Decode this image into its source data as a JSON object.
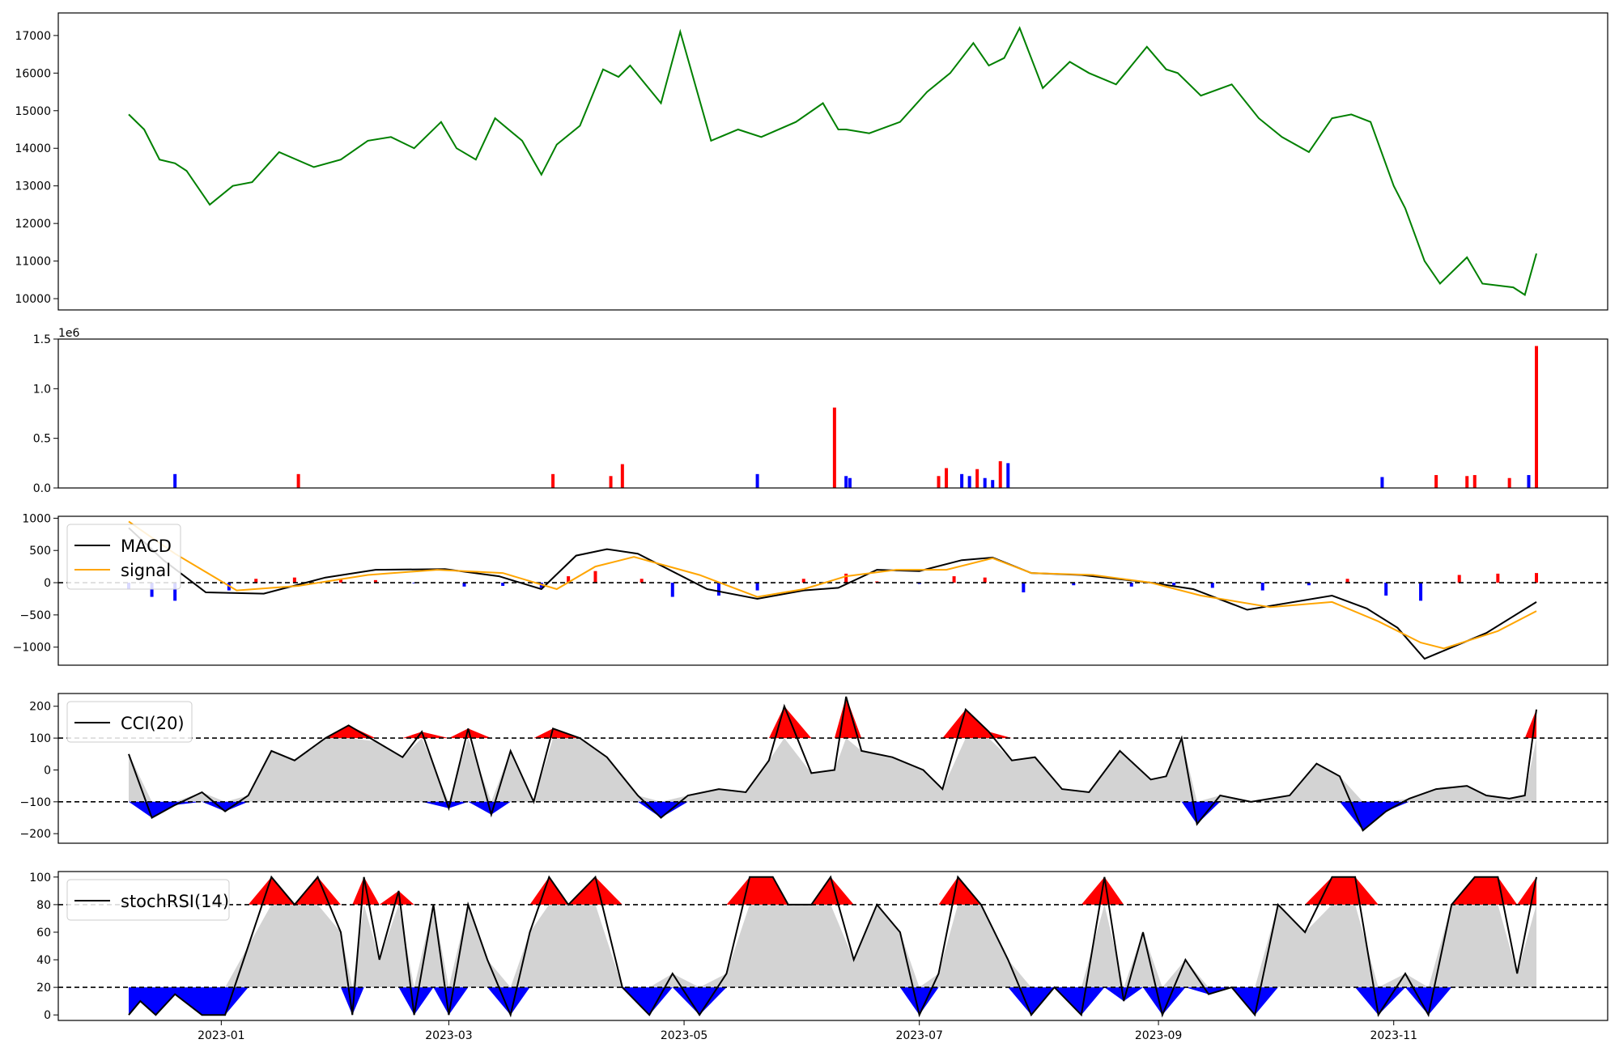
{
  "chart_data": [
    {
      "type": "line",
      "title": "",
      "xlabel": "",
      "ylabel": "",
      "ylim": [
        9700,
        17600
      ],
      "yticks": [
        "10000",
        "11000",
        "12000",
        "13000",
        "14000",
        "15000",
        "16000",
        "17000"
      ],
      "color": "#008000",
      "x_range": [
        "2022-12-08",
        "2023-12-08"
      ],
      "x": [
        "2022-12-08",
        "2022-12-12",
        "2022-12-16",
        "2022-12-20",
        "2022-12-23",
        "2022-12-29",
        "2023-01-04",
        "2023-01-09",
        "2023-01-16",
        "2023-01-25",
        "2023-02-01",
        "2023-02-08",
        "2023-02-14",
        "2023-02-20",
        "2023-02-27",
        "2023-03-03",
        "2023-03-08",
        "2023-03-13",
        "2023-03-20",
        "2023-03-25",
        "2023-03-29",
        "2023-04-04",
        "2023-04-10",
        "2023-04-14",
        "2023-04-17",
        "2023-04-25",
        "2023-04-30",
        "2023-05-08",
        "2023-05-15",
        "2023-05-21",
        "2023-05-30",
        "2023-06-06",
        "2023-06-10",
        "2023-06-12",
        "2023-06-18",
        "2023-06-26",
        "2023-07-03",
        "2023-07-09",
        "2023-07-15",
        "2023-07-19",
        "2023-07-23",
        "2023-07-27",
        "2023-08-02",
        "2023-08-09",
        "2023-08-14",
        "2023-08-21",
        "2023-08-29",
        "2023-09-03",
        "2023-09-06",
        "2023-09-12",
        "2023-09-20",
        "2023-09-27",
        "2023-10-03",
        "2023-10-10",
        "2023-10-16",
        "2023-10-21",
        "2023-10-26",
        "2023-11-01",
        "2023-11-04",
        "2023-11-09",
        "2023-11-13",
        "2023-11-20",
        "2023-11-24",
        "2023-12-02",
        "2023-12-05",
        "2023-12-08"
      ],
      "y": [
        14900,
        14500,
        13700,
        13600,
        13400,
        12500,
        13000,
        13100,
        13900,
        13500,
        13700,
        14200,
        14300,
        14000,
        14700,
        14000,
        13700,
        14800,
        14200,
        13300,
        14100,
        14600,
        16100,
        15900,
        16200,
        15200,
        17100,
        14200,
        14500,
        14300,
        14700,
        15200,
        14500,
        14500,
        14400,
        14700,
        15500,
        16000,
        16800,
        16200,
        16400,
        17200,
        15600,
        16300,
        16000,
        15700,
        16700,
        16100,
        16000,
        15400,
        15700,
        14800,
        14300,
        13900,
        14800,
        14900,
        14700,
        13000,
        12400,
        11000,
        10400,
        11100,
        10400,
        10300,
        10100,
        11200
      ]
    },
    {
      "type": "bar",
      "title": "",
      "xlabel": "",
      "ylabel": "",
      "offset_text": "1e6",
      "ylim": [
        0,
        1.5
      ],
      "yticks": [
        "0.0",
        "0.5",
        "1.0",
        "1.5"
      ],
      "colors": {
        "up": "#ff0000",
        "down": "#0000ff"
      },
      "x": [
        "2022-12-20",
        "2023-01-21",
        "2023-03-28",
        "2023-04-12",
        "2023-04-15",
        "2023-05-20",
        "2023-06-09",
        "2023-06-12",
        "2023-06-13",
        "2023-07-06",
        "2023-07-08",
        "2023-07-12",
        "2023-07-14",
        "2023-07-16",
        "2023-07-18",
        "2023-07-20",
        "2023-07-22",
        "2023-07-24",
        "2023-10-29",
        "2023-11-12",
        "2023-11-20",
        "2023-11-22",
        "2023-12-01",
        "2023-12-06",
        "2023-12-08"
      ],
      "values": [
        0.14,
        0.14,
        0.14,
        0.12,
        0.24,
        0.14,
        0.81,
        0.12,
        0.1,
        0.12,
        0.2,
        0.14,
        0.12,
        0.19,
        0.1,
        0.08,
        0.27,
        0.25,
        0.11,
        0.13,
        0.12,
        0.13,
        0.1,
        0.13,
        1.43
      ],
      "up": [
        false,
        true,
        true,
        true,
        true,
        false,
        true,
        false,
        false,
        true,
        true,
        false,
        false,
        true,
        false,
        false,
        true,
        false,
        false,
        true,
        true,
        true,
        true,
        false,
        true
      ]
    },
    {
      "type": "line",
      "title": "",
      "xlabel": "",
      "ylabel": "",
      "ylim": [
        -1280,
        1030
      ],
      "yticks": [
        "−1000",
        "−500",
        "0",
        "500",
        "1000"
      ],
      "reference_line": 0,
      "legend": {
        "placement": "top-left",
        "entries": [
          "MACD",
          "signal"
        ]
      },
      "series": [
        {
          "name": "MACD",
          "color": "#000000",
          "x": [
            "2022-12-08",
            "2022-12-17",
            "2022-12-28",
            "2023-01-12",
            "2023-01-28",
            "2023-02-10",
            "2023-02-28",
            "2023-03-14",
            "2023-03-25",
            "2023-04-03",
            "2023-04-11",
            "2023-04-19",
            "2023-05-07",
            "2023-05-20",
            "2023-06-01",
            "2023-06-10",
            "2023-06-20",
            "2023-07-01",
            "2023-07-12",
            "2023-07-20",
            "2023-07-30",
            "2023-08-12",
            "2023-08-30",
            "2023-09-10",
            "2023-09-24",
            "2023-10-16",
            "2023-10-25",
            "2023-11-02",
            "2023-11-09",
            "2023-11-25",
            "2023-12-08"
          ],
          "values": [
            850,
            350,
            -150,
            -170,
            80,
            200,
            210,
            100,
            -100,
            420,
            520,
            450,
            -100,
            -250,
            -120,
            -80,
            200,
            180,
            350,
            390,
            150,
            120,
            0,
            -100,
            -420,
            -200,
            -400,
            -700,
            -1180,
            -780,
            -300
          ]
        },
        {
          "name": "signal",
          "color": "#ffa500",
          "x": [
            "2022-12-08",
            "2022-12-20",
            "2023-01-05",
            "2023-01-21",
            "2023-02-08",
            "2023-02-26",
            "2023-03-15",
            "2023-03-29",
            "2023-04-08",
            "2023-04-18",
            "2023-05-05",
            "2023-05-20",
            "2023-06-01",
            "2023-06-12",
            "2023-06-25",
            "2023-07-08",
            "2023-07-20",
            "2023-07-30",
            "2023-08-15",
            "2023-08-30",
            "2023-09-12",
            "2023-09-30",
            "2023-10-16",
            "2023-10-28",
            "2023-11-08",
            "2023-11-14",
            "2023-11-28",
            "2023-12-08"
          ],
          "values": [
            950,
            450,
            -120,
            -50,
            120,
            200,
            150,
            -100,
            250,
            400,
            120,
            -220,
            -100,
            100,
            200,
            200,
            380,
            150,
            120,
            0,
            -200,
            -380,
            -300,
            -600,
            -930,
            -1020,
            -750,
            -440
          ]
        }
      ],
      "histogram_colors": {
        "positive": "#ff0000",
        "negative": "#0000ff"
      },
      "histogram": {
        "x": [
          "2022-12-08",
          "2022-12-14",
          "2022-12-20",
          "2023-01-03",
          "2023-01-10",
          "2023-01-20",
          "2023-02-01",
          "2023-02-10",
          "2023-02-20",
          "2023-03-05",
          "2023-03-15",
          "2023-03-25",
          "2023-04-01",
          "2023-04-08",
          "2023-04-20",
          "2023-04-28",
          "2023-05-10",
          "2023-05-20",
          "2023-06-01",
          "2023-06-12",
          "2023-06-20",
          "2023-07-01",
          "2023-07-10",
          "2023-07-18",
          "2023-07-28",
          "2023-08-10",
          "2023-08-25",
          "2023-09-05",
          "2023-09-15",
          "2023-09-28",
          "2023-10-10",
          "2023-10-20",
          "2023-10-30",
          "2023-11-08",
          "2023-11-18",
          "2023-11-28",
          "2023-12-08"
        ],
        "values": [
          -100,
          -220,
          -280,
          -120,
          60,
          80,
          60,
          40,
          -10,
          -60,
          -50,
          -80,
          100,
          180,
          60,
          -220,
          -200,
          -120,
          60,
          140,
          20,
          -20,
          100,
          80,
          -150,
          -40,
          -60,
          -40,
          -80,
          -120,
          -40,
          60,
          -200,
          -280,
          120,
          140,
          150
        ]
      }
    },
    {
      "type": "line",
      "title": "",
      "xlabel": "",
      "ylabel": "",
      "ylim": [
        -230,
        240
      ],
      "yticks": [
        "−200",
        "−100",
        "0",
        "100",
        "200"
      ],
      "bands": [
        -100,
        100
      ],
      "legend": {
        "placement": "top-left",
        "entries": [
          "CCI(20)"
        ]
      },
      "series": [
        {
          "name": "CCI(20)",
          "color": "#000000",
          "x": [
            "2022-12-08",
            "2022-12-14",
            "2022-12-20",
            "2022-12-27",
            "2023-01-02",
            "2023-01-08",
            "2023-01-14",
            "2023-01-20",
            "2023-01-28",
            "2023-02-03",
            "2023-02-10",
            "2023-02-17",
            "2023-02-22",
            "2023-03-01",
            "2023-03-06",
            "2023-03-12",
            "2023-03-17",
            "2023-03-23",
            "2023-03-28",
            "2023-04-04",
            "2023-04-11",
            "2023-04-19",
            "2023-04-25",
            "2023-05-02",
            "2023-05-10",
            "2023-05-17",
            "2023-05-23",
            "2023-05-27",
            "2023-06-03",
            "2023-06-09",
            "2023-06-12",
            "2023-06-16",
            "2023-06-24",
            "2023-07-02",
            "2023-07-07",
            "2023-07-13",
            "2023-07-19",
            "2023-07-25",
            "2023-07-31",
            "2023-08-07",
            "2023-08-14",
            "2023-08-22",
            "2023-08-30",
            "2023-09-03",
            "2023-09-07",
            "2023-09-11",
            "2023-09-17",
            "2023-09-25",
            "2023-10-05",
            "2023-10-12",
            "2023-10-18",
            "2023-10-24",
            "2023-10-30",
            "2023-11-05",
            "2023-11-12",
            "2023-11-20",
            "2023-11-25",
            "2023-12-01",
            "2023-12-05",
            "2023-12-08"
          ],
          "values": [
            50,
            -150,
            -110,
            -70,
            -130,
            -80,
            60,
            30,
            100,
            140,
            90,
            40,
            120,
            -120,
            130,
            -140,
            60,
            -100,
            130,
            100,
            40,
            -80,
            -150,
            -80,
            -60,
            -70,
            30,
            200,
            -10,
            0,
            230,
            60,
            40,
            0,
            -60,
            190,
            120,
            30,
            40,
            -60,
            -70,
            60,
            -30,
            -20,
            100,
            -170,
            -80,
            -100,
            -80,
            20,
            -20,
            -190,
            -130,
            -90,
            -60,
            -50,
            -80,
            -90,
            -80,
            190
          ]
        }
      ]
    },
    {
      "type": "line",
      "title": "",
      "xlabel": "",
      "ylabel": "",
      "ylim": [
        -4,
        104
      ],
      "yticks": [
        "0",
        "20",
        "40",
        "60",
        "80",
        "100"
      ],
      "bands": [
        20,
        80
      ],
      "legend": {
        "placement": "top-left",
        "entries": [
          "stochRSI(14)"
        ]
      },
      "series": [
        {
          "name": "stochRSI(14)",
          "color": "#000000",
          "x": [
            "2022-12-08",
            "2022-12-11",
            "2022-12-15",
            "2022-12-20",
            "2022-12-27",
            "2023-01-02",
            "2023-01-08",
            "2023-01-14",
            "2023-01-20",
            "2023-01-26",
            "2023-02-01",
            "2023-02-04",
            "2023-02-07",
            "2023-02-11",
            "2023-02-16",
            "2023-02-20",
            "2023-02-25",
            "2023-03-01",
            "2023-03-06",
            "2023-03-11",
            "2023-03-17",
            "2023-03-22",
            "2023-03-27",
            "2023-04-01",
            "2023-04-08",
            "2023-04-15",
            "2023-04-22",
            "2023-04-28",
            "2023-05-05",
            "2023-05-12",
            "2023-05-18",
            "2023-05-24",
            "2023-05-28",
            "2023-06-03",
            "2023-06-08",
            "2023-06-14",
            "2023-06-20",
            "2023-06-26",
            "2023-07-01",
            "2023-07-06",
            "2023-07-11",
            "2023-07-17",
            "2023-07-24",
            "2023-07-30",
            "2023-08-05",
            "2023-08-12",
            "2023-08-18",
            "2023-08-23",
            "2023-08-28",
            "2023-09-02",
            "2023-09-08",
            "2023-09-14",
            "2023-09-20",
            "2023-09-26",
            "2023-10-02",
            "2023-10-09",
            "2023-10-16",
            "2023-10-22",
            "2023-10-28",
            "2023-11-04",
            "2023-11-10",
            "2023-11-16",
            "2023-11-22",
            "2023-11-28",
            "2023-12-03",
            "2023-12-08"
          ],
          "values": [
            0,
            10,
            0,
            15,
            0,
            0,
            50,
            100,
            80,
            100,
            60,
            0,
            100,
            40,
            90,
            0,
            80,
            0,
            80,
            40,
            0,
            60,
            100,
            80,
            100,
            20,
            0,
            30,
            0,
            30,
            100,
            100,
            80,
            80,
            100,
            40,
            80,
            60,
            0,
            30,
            100,
            80,
            40,
            0,
            20,
            0,
            100,
            10,
            60,
            0,
            40,
            15,
            20,
            0,
            80,
            60,
            100,
            100,
            0,
            30,
            0,
            80,
            100,
            100,
            30,
            100
          ]
        }
      ]
    }
  ],
  "x_axis": {
    "tick_labels": [
      "2023-01",
      "2023-03",
      "2023-05",
      "2023-07",
      "2023-09",
      "2023-11"
    ]
  }
}
